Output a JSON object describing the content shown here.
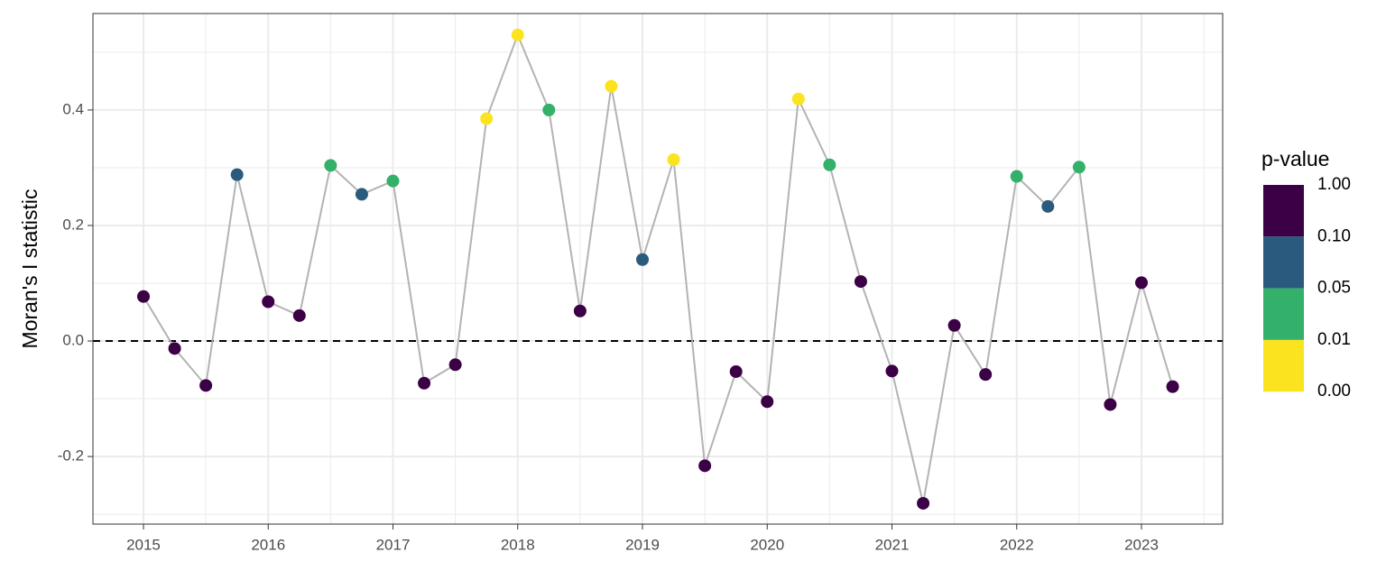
{
  "chart_data": {
    "type": "line",
    "ylabel": "Moran's I statistic",
    "x": [
      2015,
      2015.25,
      2015.5,
      2015.75,
      2016,
      2016.25,
      2016.5,
      2016.75,
      2017,
      2017.25,
      2017.5,
      2017.75,
      2018,
      2018.25,
      2018.5,
      2018.75,
      2019,
      2019.25,
      2019.5,
      2019.75,
      2020,
      2020.25,
      2020.5,
      2020.75,
      2021,
      2021.25,
      2021.5,
      2021.75,
      2022,
      2022.25,
      2022.5,
      2022.75,
      2023,
      2023.25
    ],
    "series": [
      {
        "color": "#b3b3b3",
        "values": [
          0.077,
          -0.013,
          -0.077,
          0.288,
          0.068,
          0.044,
          0.304,
          0.254,
          0.277,
          -0.073,
          -0.041,
          0.385,
          0.53,
          0.4,
          0.052,
          0.441,
          0.141,
          0.314,
          -0.216,
          -0.053,
          -0.105,
          0.419,
          0.305,
          0.103,
          -0.052,
          -0.281,
          0.027,
          -0.058,
          0.285,
          0.233,
          0.301,
          -0.11,
          0.101,
          -0.079
        ],
        "point_colors": [
          "#3b0045",
          "#3b0045",
          "#3b0045",
          "#2a5a7d",
          "#3b0045",
          "#3b0045",
          "#33b06a",
          "#2a5a7d",
          "#33b06a",
          "#3b0045",
          "#3b0045",
          "#fce31f",
          "#fce31f",
          "#33b06a",
          "#3b0045",
          "#fce31f",
          "#2a5a7d",
          "#fce31f",
          "#3b0045",
          "#3b0045",
          "#3b0045",
          "#fce31f",
          "#33b06a",
          "#3b0045",
          "#3b0045",
          "#3b0045",
          "#3b0045",
          "#3b0045",
          "#33b06a",
          "#2a5a7d",
          "#33b06a",
          "#3b0045",
          "#3b0045",
          "#3b0045"
        ]
      }
    ],
    "xlim": [
      2014.595,
      2023.651
    ],
    "xticks": [
      2015,
      2016,
      2017,
      2018,
      2019,
      2020,
      2021,
      2022,
      2023
    ],
    "ylim": [
      -0.317,
      0.567
    ],
    "yticks": [
      -0.2,
      {
        "value": 0,
        "label": "0.0"
      },
      0.2,
      0.4
    ],
    "hline": 0,
    "grid": true,
    "legend": {
      "title": "p-value",
      "labels": [
        "1.00",
        "0.10",
        "0.05",
        "0.01",
        "0.00"
      ],
      "colors": [
        "#3b0045",
        "#2a5a7d",
        "#33b06a",
        "#fce31f"
      ]
    }
  }
}
